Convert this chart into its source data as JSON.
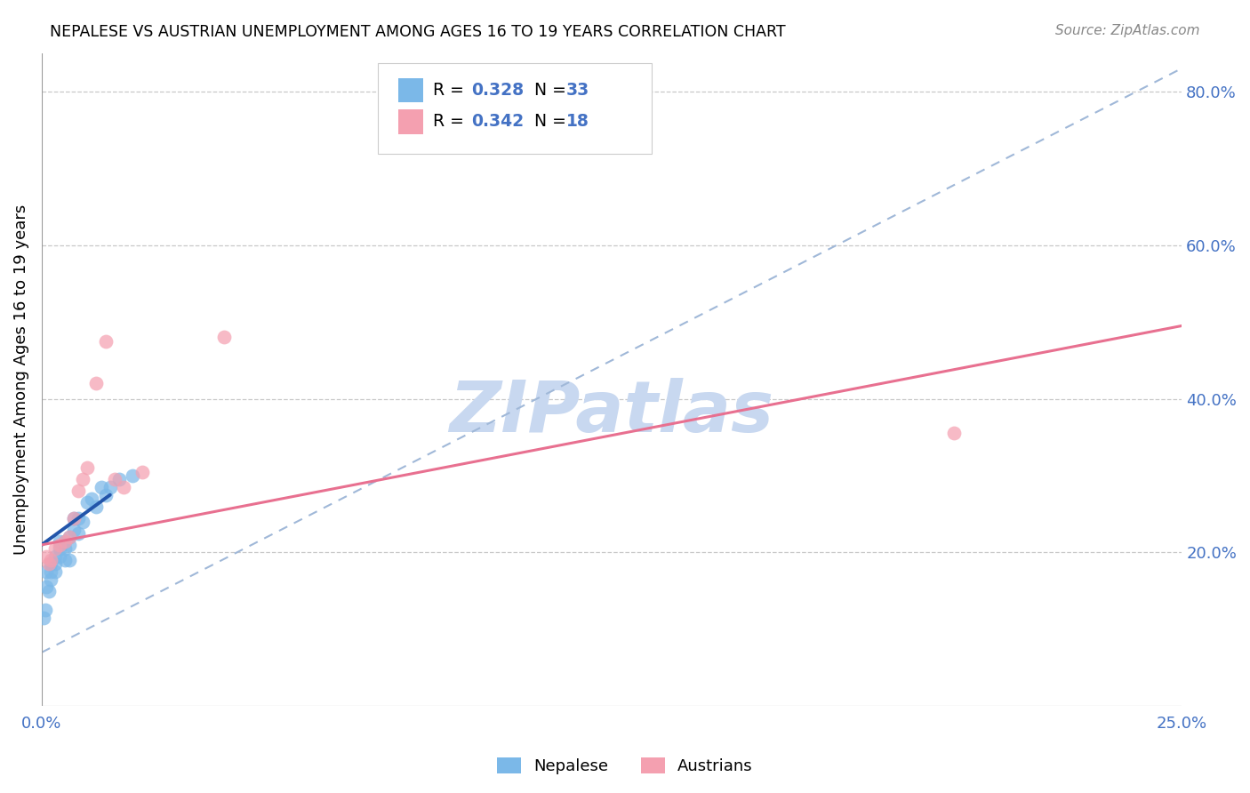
{
  "title": "NEPALESE VS AUSTRIAN UNEMPLOYMENT AMONG AGES 16 TO 19 YEARS CORRELATION CHART",
  "source": "Source: ZipAtlas.com",
  "ylabel_label": "Unemployment Among Ages 16 to 19 years",
  "legend_label1": "Nepalese",
  "legend_label2": "Austrians",
  "R1": "0.328",
  "N1": "33",
  "R2": "0.342",
  "N2": "18",
  "color_blue": "#7BB8E8",
  "color_pink": "#F4A0B0",
  "color_blue_text": "#4472C4",
  "watermark_color": "#C8D8F0",
  "xlim": [
    0.0,
    0.25
  ],
  "ylim": [
    0.0,
    0.85
  ],
  "nepalese_x": [
    0.0005,
    0.0008,
    0.001,
    0.001,
    0.0015,
    0.002,
    0.002,
    0.002,
    0.003,
    0.003,
    0.003,
    0.004,
    0.004,
    0.004,
    0.005,
    0.005,
    0.005,
    0.006,
    0.006,
    0.006,
    0.007,
    0.007,
    0.008,
    0.008,
    0.009,
    0.01,
    0.011,
    0.012,
    0.013,
    0.014,
    0.015,
    0.017,
    0.02
  ],
  "nepalese_y": [
    0.115,
    0.125,
    0.175,
    0.155,
    0.15,
    0.185,
    0.175,
    0.165,
    0.195,
    0.185,
    0.175,
    0.215,
    0.205,
    0.195,
    0.215,
    0.205,
    0.19,
    0.22,
    0.21,
    0.19,
    0.245,
    0.23,
    0.245,
    0.225,
    0.24,
    0.265,
    0.27,
    0.26,
    0.285,
    0.275,
    0.285,
    0.295,
    0.3
  ],
  "austrian_x": [
    0.001,
    0.0015,
    0.002,
    0.003,
    0.004,
    0.005,
    0.006,
    0.007,
    0.008,
    0.009,
    0.01,
    0.012,
    0.014,
    0.016,
    0.018,
    0.022,
    0.04,
    0.2
  ],
  "austrian_y": [
    0.195,
    0.185,
    0.19,
    0.205,
    0.21,
    0.215,
    0.22,
    0.245,
    0.28,
    0.295,
    0.31,
    0.42,
    0.475,
    0.295,
    0.285,
    0.305,
    0.48,
    0.355
  ],
  "diag_line_color": "#A0B8D8",
  "trend_pink_color": "#E87090",
  "trend_blue_color": "#2255AA",
  "blue_trend_x0": 0.0,
  "blue_trend_y0": 0.21,
  "blue_trend_x1": 0.015,
  "blue_trend_y1": 0.275,
  "pink_trend_x0": 0.0,
  "pink_trend_y0": 0.21,
  "pink_trend_x1": 0.25,
  "pink_trend_y1": 0.495
}
